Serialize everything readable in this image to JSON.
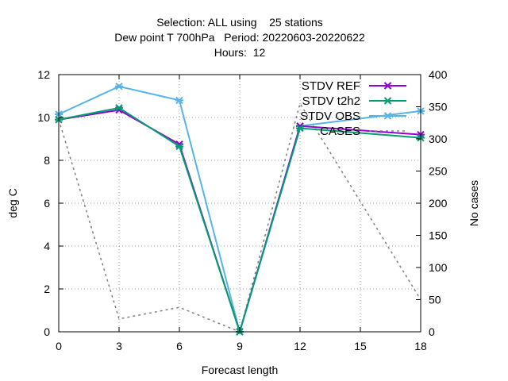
{
  "chart_data": {
    "type": "line",
    "title_lines": [
      "Selection: ALL using    25 stations",
      "Dew point T 700hPa   Period: 20220603-20220622",
      "Hours:  12"
    ],
    "xlabel": "Forecast length",
    "ylabel": "deg C",
    "y2label": "No cases",
    "xlim": [
      0,
      18
    ],
    "ylim": [
      0,
      12
    ],
    "y2lim": [
      0,
      400
    ],
    "xticks": [
      0,
      3,
      6,
      9,
      12,
      15,
      18
    ],
    "yticks": [
      0,
      2,
      4,
      6,
      8,
      10,
      12
    ],
    "y2ticks": [
      0,
      50,
      100,
      150,
      200,
      250,
      300,
      350,
      400
    ],
    "grid": true,
    "legend_position": "top-right",
    "series": [
      {
        "name": "STDV REF",
        "color": "#9400d3",
        "marker": "x",
        "axis": "y",
        "x": [
          0,
          3,
          6,
          9,
          12,
          18
        ],
        "values": [
          9.9,
          10.35,
          8.75,
          0.0,
          9.6,
          9.2
        ]
      },
      {
        "name": "STDV t2h2",
        "color": "#009e73",
        "marker": "x",
        "axis": "y",
        "x": [
          0,
          3,
          6,
          9,
          12,
          18
        ],
        "values": [
          9.9,
          10.45,
          8.65,
          0.0,
          9.5,
          9.05
        ]
      },
      {
        "name": "STDV OBS",
        "color": "#56b4e9",
        "marker": "x",
        "axis": "y",
        "x": [
          0,
          3,
          6,
          9,
          12,
          18
        ],
        "values": [
          10.15,
          11.45,
          10.8,
          0.0,
          9.6,
          10.3
        ]
      },
      {
        "name": "CASES",
        "color": "#808080",
        "dashed": true,
        "axis": "y2",
        "x": [
          0,
          3,
          6,
          9,
          12,
          18
        ],
        "values": [
          330,
          20,
          38,
          0,
          355,
          50
        ]
      }
    ]
  }
}
